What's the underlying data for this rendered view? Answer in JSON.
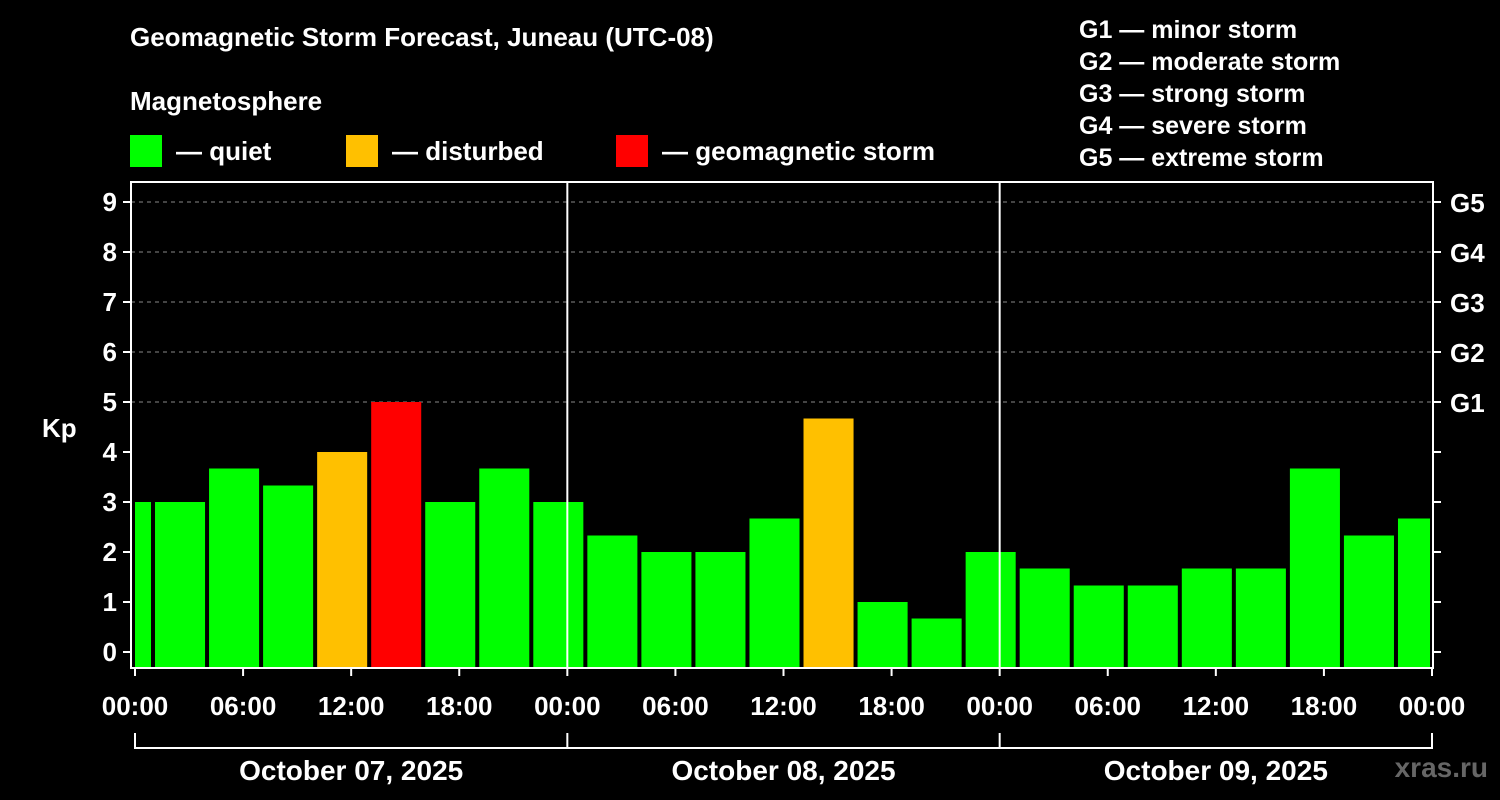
{
  "header": {
    "title": "Geomagnetic Storm Forecast, Juneau (UTC-08)",
    "subtitle": "Magnetosphere"
  },
  "legend": [
    {
      "label": "— quiet",
      "color": "#00ff00"
    },
    {
      "label": "— disturbed",
      "color": "#ffc000"
    },
    {
      "label": "— geomagnetic storm",
      "color": "#ff0000"
    }
  ],
  "g_scale": [
    "G1 — minor storm",
    "G2 — moderate storm",
    "G3 — strong storm",
    "G4 — severe storm",
    "G5 — extreme storm"
  ],
  "watermark": "xras.ru",
  "chart_data": {
    "type": "bar",
    "ylabel": "Kp",
    "ylim": [
      0,
      9
    ],
    "y_ticks": [
      0,
      1,
      2,
      3,
      4,
      5,
      6,
      7,
      8,
      9
    ],
    "right_ticks": [
      {
        "kp": 5,
        "label": "G1"
      },
      {
        "kp": 6,
        "label": "G2"
      },
      {
        "kp": 7,
        "label": "G3"
      },
      {
        "kp": 8,
        "label": "G4"
      },
      {
        "kp": 9,
        "label": "G5"
      }
    ],
    "grid": "horizontal dashed lines at Kp 5-9",
    "x_ticks": [
      "00:00",
      "06:00",
      "12:00",
      "18:00",
      "00:00",
      "06:00",
      "12:00",
      "18:00",
      "00:00",
      "06:00",
      "12:00",
      "18:00",
      "00:00"
    ],
    "dates": [
      "October 07, 2025",
      "October 08, 2025",
      "October 09, 2025"
    ],
    "colors": {
      "quiet": "#00ff00",
      "disturbed": "#ffc000",
      "storm": "#ff0000"
    },
    "bars": [
      {
        "start_hour": 0,
        "kp": 3.0,
        "level": "quiet"
      },
      {
        "start_hour": 1,
        "kp": 3.0,
        "level": "quiet"
      },
      {
        "start_hour": 4,
        "kp": 3.67,
        "level": "quiet"
      },
      {
        "start_hour": 7,
        "kp": 3.33,
        "level": "quiet"
      },
      {
        "start_hour": 10,
        "kp": 4.0,
        "level": "disturbed"
      },
      {
        "start_hour": 13,
        "kp": 5.0,
        "level": "storm"
      },
      {
        "start_hour": 16,
        "kp": 3.0,
        "level": "quiet"
      },
      {
        "start_hour": 19,
        "kp": 3.67,
        "level": "quiet"
      },
      {
        "start_hour": 22,
        "kp": 3.0,
        "level": "quiet"
      },
      {
        "start_hour": 25,
        "kp": 2.33,
        "level": "quiet"
      },
      {
        "start_hour": 28,
        "kp": 2.0,
        "level": "quiet"
      },
      {
        "start_hour": 31,
        "kp": 2.0,
        "level": "quiet"
      },
      {
        "start_hour": 34,
        "kp": 2.67,
        "level": "quiet"
      },
      {
        "start_hour": 37,
        "kp": 4.67,
        "level": "disturbed"
      },
      {
        "start_hour": 40,
        "kp": 1.0,
        "level": "quiet"
      },
      {
        "start_hour": 43,
        "kp": 0.67,
        "level": "quiet"
      },
      {
        "start_hour": 46,
        "kp": 2.0,
        "level": "quiet"
      },
      {
        "start_hour": 49,
        "kp": 1.67,
        "level": "quiet"
      },
      {
        "start_hour": 52,
        "kp": 1.33,
        "level": "quiet"
      },
      {
        "start_hour": 55,
        "kp": 1.33,
        "level": "quiet"
      },
      {
        "start_hour": 58,
        "kp": 1.67,
        "level": "quiet"
      },
      {
        "start_hour": 61,
        "kp": 1.67,
        "level": "quiet"
      },
      {
        "start_hour": 64,
        "kp": 3.67,
        "level": "quiet"
      },
      {
        "start_hour": 67,
        "kp": 2.33,
        "level": "quiet"
      },
      {
        "start_hour": 70,
        "kp": 2.67,
        "level": "quiet"
      }
    ]
  }
}
